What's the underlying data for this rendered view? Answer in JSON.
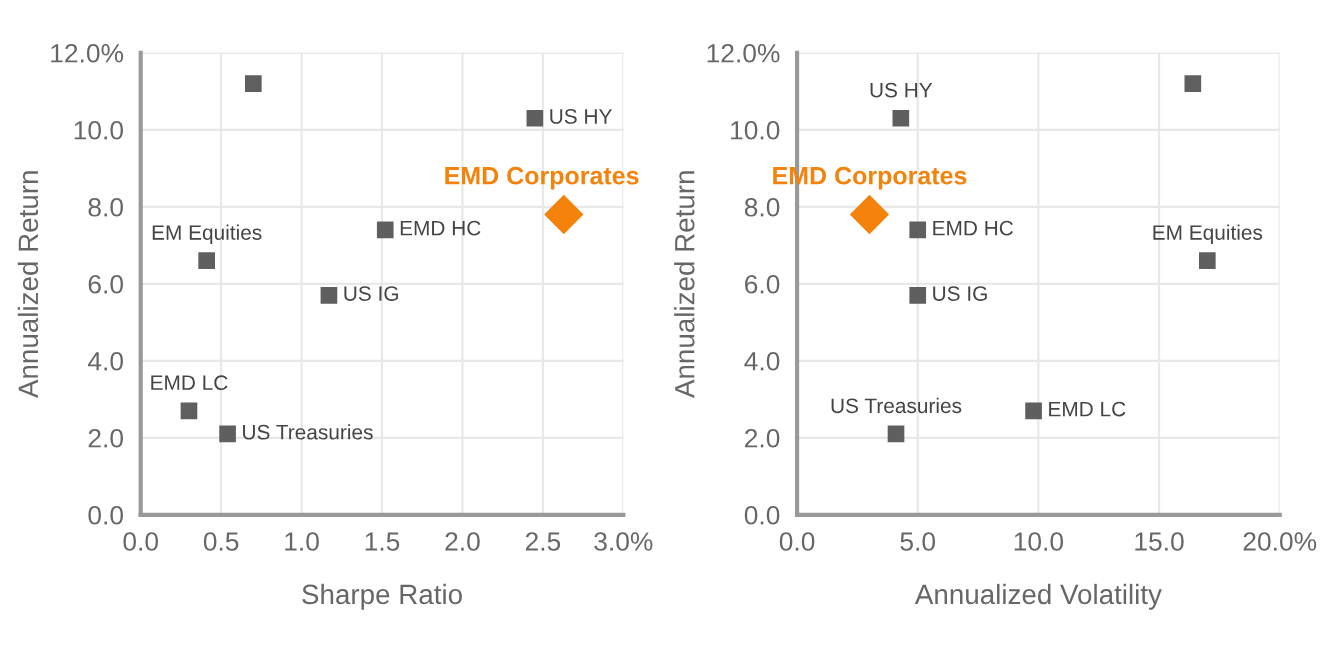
{
  "chart_data": [
    {
      "type": "scatter",
      "xlabel": "Sharpe Ratio",
      "ylabel": "Annualized Return",
      "grid": true,
      "legend": false,
      "marker": "square",
      "xlim": [
        0,
        3
      ],
      "xticks": [
        {
          "value": 0,
          "label": "0.0"
        },
        {
          "value": 0.5,
          "label": "0.5"
        },
        {
          "value": 1,
          "label": "1.0"
        },
        {
          "value": 1.5,
          "label": "1.5"
        },
        {
          "value": 2,
          "label": "2.0"
        },
        {
          "value": 2.5,
          "label": "2.5"
        },
        {
          "value": 3,
          "label": "3.0%"
        }
      ],
      "ylim": [
        0,
        12
      ],
      "yticks": [
        {
          "value": 0,
          "label": "0.0"
        },
        {
          "value": 2,
          "label": "2.0"
        },
        {
          "value": 4,
          "label": "4.0"
        },
        {
          "value": 6,
          "label": "6.0"
        },
        {
          "value": 8,
          "label": "8.0"
        },
        {
          "value": 10,
          "label": "10.0"
        },
        {
          "value": 12,
          "label": "12.0%"
        }
      ],
      "series": [
        {
          "color": "#5f5f5f",
          "x": [
            0.7
          ],
          "values": [
            11.2
          ]
        },
        {
          "name": "US HY",
          "color": "#5f5f5f",
          "x": [
            2.45
          ],
          "values": [
            10.3
          ]
        },
        {
          "name": "EMD Corporates",
          "color": "#f5820a",
          "marker": "diamond",
          "x": [
            2.63
          ],
          "values": [
            7.8
          ]
        },
        {
          "name": "EMD HC",
          "color": "#5f5f5f",
          "x": [
            1.52
          ],
          "values": [
            7.4
          ]
        },
        {
          "name": "EM Equities",
          "color": "#5f5f5f",
          "x": [
            0.41
          ],
          "values": [
            6.6
          ]
        },
        {
          "name": "US IG",
          "color": "#5f5f5f",
          "x": [
            1.17
          ],
          "values": [
            5.7
          ]
        },
        {
          "name": "EMD LC",
          "color": "#5f5f5f",
          "x": [
            0.3
          ],
          "values": [
            2.7
          ]
        },
        {
          "name": "US Treasuries",
          "color": "#5f5f5f",
          "x": [
            0.54
          ],
          "values": [
            2.1
          ]
        }
      ]
    },
    {
      "type": "scatter",
      "xlabel": "Annualized Volatility",
      "ylabel": "Annualized Return",
      "grid": true,
      "legend": false,
      "marker": "square",
      "xlim": [
        0,
        20
      ],
      "xticks": [
        {
          "value": 0,
          "label": "0.0"
        },
        {
          "value": 5,
          "label": "5.0"
        },
        {
          "value": 10,
          "label": "10.0"
        },
        {
          "value": 15,
          "label": "15.0"
        },
        {
          "value": 20,
          "label": "20.0%"
        }
      ],
      "ylim": [
        0,
        12
      ],
      "yticks": [
        {
          "value": 0,
          "label": "0.0"
        },
        {
          "value": 2,
          "label": "2.0"
        },
        {
          "value": 4,
          "label": "4.0"
        },
        {
          "value": 6,
          "label": "6.0"
        },
        {
          "value": 8,
          "label": "8.0"
        },
        {
          "value": 10,
          "label": "10.0"
        },
        {
          "value": 12,
          "label": "12.0%"
        }
      ],
      "series": [
        {
          "color": "#5f5f5f",
          "x": [
            16.4
          ],
          "values": [
            11.2
          ]
        },
        {
          "name": "US HY",
          "color": "#5f5f5f",
          "x": [
            4.3
          ],
          "values": [
            10.3
          ]
        },
        {
          "name": "EMD Corporates",
          "color": "#f5820a",
          "marker": "diamond",
          "x": [
            3.0
          ],
          "values": [
            7.8
          ]
        },
        {
          "name": "EMD HC",
          "color": "#5f5f5f",
          "x": [
            5.0
          ],
          "values": [
            7.4
          ]
        },
        {
          "name": "EM Equities",
          "color": "#5f5f5f",
          "x": [
            17.0
          ],
          "values": [
            6.6
          ]
        },
        {
          "name": "US IG",
          "color": "#5f5f5f",
          "x": [
            5.0
          ],
          "values": [
            5.7
          ]
        },
        {
          "name": "EMD LC",
          "color": "#5f5f5f",
          "x": [
            9.8
          ],
          "values": [
            2.7
          ]
        },
        {
          "name": "US Treasuries",
          "color": "#5f5f5f",
          "x": [
            4.1
          ],
          "values": [
            2.1
          ]
        }
      ]
    }
  ]
}
